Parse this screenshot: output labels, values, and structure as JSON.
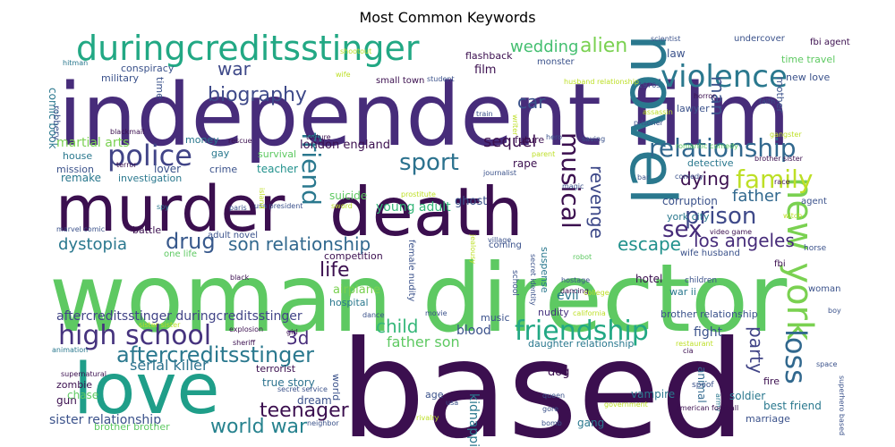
{
  "chart_data": {
    "type": "wordcloud",
    "title": "Most Common Keywords",
    "words": [
      {
        "text": "based",
        "color": "#3b0f4f"
      },
      {
        "text": "woman director",
        "color": "#5ec962"
      },
      {
        "text": "independent film",
        "color": "#472c7a"
      },
      {
        "text": "death",
        "color": "#3b0f4f"
      },
      {
        "text": "murder",
        "color": "#3b0f4f"
      },
      {
        "text": "love",
        "color": "#1f9e89"
      },
      {
        "text": "novel",
        "color": "#2a788e"
      },
      {
        "text": "duringcreditsstinger",
        "color": "#22a884"
      },
      {
        "text": "violence",
        "color": "#2a788e"
      },
      {
        "text": "new york",
        "color": "#7ad151"
      },
      {
        "text": "relationship",
        "color": "#31688e"
      },
      {
        "text": "police",
        "color": "#414487"
      },
      {
        "text": "friendship",
        "color": "#22a884"
      },
      {
        "text": "prison",
        "color": "#3e4989"
      },
      {
        "text": "high school",
        "color": "#46337e"
      },
      {
        "text": "family",
        "color": "#bddf26"
      },
      {
        "text": "sport",
        "color": "#2c728e"
      },
      {
        "text": "musical",
        "color": "#3b0f4f"
      },
      {
        "text": "aftercreditsstinger",
        "color": "#2a788e"
      },
      {
        "text": "friend",
        "color": "#2a788e"
      },
      {
        "text": "loss",
        "color": "#31688e"
      },
      {
        "text": "sex",
        "color": "#472c7a"
      },
      {
        "text": "drug",
        "color": "#38598c"
      },
      {
        "text": "biography",
        "color": "#3e4989"
      },
      {
        "text": "teenager",
        "color": "#3b0f4f"
      },
      {
        "text": "world war",
        "color": "#26828e"
      },
      {
        "text": "los angeles",
        "color": "#472c7a"
      },
      {
        "text": "son relationship",
        "color": "#31688e"
      },
      {
        "text": "escape",
        "color": "#21918c"
      },
      {
        "text": "dystopia",
        "color": "#2a788e"
      },
      {
        "text": "sequel",
        "color": "#3b0f4f"
      },
      {
        "text": "dying",
        "color": "#3b0f4f"
      },
      {
        "text": "revenge",
        "color": "#3e4989"
      },
      {
        "text": "party",
        "color": "#414487"
      },
      {
        "text": "3d",
        "color": "#472c7a"
      },
      {
        "text": "life",
        "color": "#3b0f4f"
      },
      {
        "text": "child",
        "color": "#35b779"
      },
      {
        "text": "alien",
        "color": "#7ad151"
      },
      {
        "text": "wedding",
        "color": "#44bf70"
      },
      {
        "text": "war",
        "color": "#3e4989"
      },
      {
        "text": "car",
        "color": "#3b528b"
      },
      {
        "text": "man",
        "color": "#3b528b"
      },
      {
        "text": "father",
        "color": "#31688e"
      },
      {
        "text": "serial killer",
        "color": "#2c728e"
      },
      {
        "text": "sister relationship",
        "color": "#3b528b"
      },
      {
        "text": "aftercreditsstinger duringcreditsstinger",
        "color": "#414487"
      },
      {
        "text": "london england",
        "color": "#3b0f4f"
      },
      {
        "text": "father son",
        "color": "#5ec962"
      },
      {
        "text": "blood",
        "color": "#3b528b"
      },
      {
        "text": "true story",
        "color": "#2c728e"
      },
      {
        "text": "dream",
        "color": "#3b528b"
      },
      {
        "text": "martial arts",
        "color": "#7ad151"
      },
      {
        "text": "corruption",
        "color": "#3b528b"
      },
      {
        "text": "suicide",
        "color": "#5ec962"
      },
      {
        "text": "young adult",
        "color": "#35b779"
      },
      {
        "text": "ghost",
        "color": "#3b528b"
      },
      {
        "text": "fight",
        "color": "#3b528b"
      },
      {
        "text": "animal",
        "color": "#31688e"
      },
      {
        "text": "teacher",
        "color": "#21918c"
      },
      {
        "text": "survival",
        "color": "#5ec962"
      },
      {
        "text": "airplane",
        "color": "#7ad151"
      },
      {
        "text": "competition",
        "color": "#3b0f4f"
      },
      {
        "text": "hospital",
        "color": "#2a788e"
      },
      {
        "text": "music",
        "color": "#3b528b"
      },
      {
        "text": "nudity",
        "color": "#46337e"
      },
      {
        "text": "kidnapping",
        "color": "#2a788e"
      },
      {
        "text": "evil",
        "color": "#2a788e"
      },
      {
        "text": "dog",
        "color": "#3b0f4f"
      },
      {
        "text": "brother relationship",
        "color": "#3b528b"
      },
      {
        "text": "daughter relationship",
        "color": "#2a788e"
      },
      {
        "text": "hotel",
        "color": "#3b0f4f"
      },
      {
        "text": "war ii",
        "color": "#2a788e"
      },
      {
        "text": "vampire",
        "color": "#2a788e"
      },
      {
        "text": "soldier",
        "color": "#2a788e"
      },
      {
        "text": "best friend",
        "color": "#2a788e"
      },
      {
        "text": "marriage",
        "color": "#3b528b"
      },
      {
        "text": "gang",
        "color": "#2a788e"
      },
      {
        "text": "zombie",
        "color": "#3b0f4f"
      },
      {
        "text": "terrorist",
        "color": "#3b0f4f"
      },
      {
        "text": "rape",
        "color": "#3b0f4f"
      },
      {
        "text": "future",
        "color": "#3b0f4f"
      },
      {
        "text": "detective",
        "color": "#2a788e"
      },
      {
        "text": "york city",
        "color": "#2a788e"
      },
      {
        "text": "wife husband",
        "color": "#3b528b"
      },
      {
        "text": "lover",
        "color": "#3b528b"
      },
      {
        "text": "crime",
        "color": "#3b528b"
      },
      {
        "text": "remake",
        "color": "#2a788e"
      },
      {
        "text": "investigation",
        "color": "#2a788e"
      },
      {
        "text": "mission",
        "color": "#3b528b"
      },
      {
        "text": "house",
        "color": "#2a788e"
      },
      {
        "text": "gay",
        "color": "#2a788e"
      },
      {
        "text": "money",
        "color": "#2a788e"
      },
      {
        "text": "battle",
        "color": "#3b0f4f"
      },
      {
        "text": "adult novel",
        "color": "#3b528b"
      },
      {
        "text": "one life",
        "color": "#5ec962"
      },
      {
        "text": "coming",
        "color": "#3b528b"
      },
      {
        "text": "suspense",
        "color": "#2a788e"
      },
      {
        "text": "gun",
        "color": "#3b0f4f"
      },
      {
        "text": "chase",
        "color": "#5ec962"
      },
      {
        "text": "age",
        "color": "#3b528b"
      },
      {
        "text": "fire",
        "color": "#3b0f4f"
      },
      {
        "text": "spoof",
        "color": "#3b528b"
      },
      {
        "text": "fbi",
        "color": "#3b0f4f"
      },
      {
        "text": "mother",
        "color": "#3b528b"
      },
      {
        "text": "lawyer",
        "color": "#3b528b"
      },
      {
        "text": "law",
        "color": "#3b528b"
      },
      {
        "text": "time travel",
        "color": "#5ec962"
      },
      {
        "text": "new love",
        "color": "#3b528b"
      },
      {
        "text": "agent",
        "color": "#3b528b"
      },
      {
        "text": "undercover",
        "color": "#3b528b"
      },
      {
        "text": "fbi agent",
        "color": "#3b0f4f"
      },
      {
        "text": "military",
        "color": "#3b528b"
      },
      {
        "text": "conspiracy",
        "color": "#3b528b"
      },
      {
        "text": "comic book",
        "color": "#2a788e"
      },
      {
        "text": "small town",
        "color": "#3b0f4f"
      },
      {
        "text": "film",
        "color": "#3b0f4f"
      },
      {
        "text": "flashback",
        "color": "#3b0f4f"
      },
      {
        "text": "monster",
        "color": "#3b528b"
      },
      {
        "text": "woman",
        "color": "#3b528b"
      },
      {
        "text": "children",
        "color": "#3b528b"
      },
      {
        "text": "horse",
        "color": "#3b528b"
      },
      {
        "text": "torture",
        "color": "#3b0f4f"
      },
      {
        "text": "rescue",
        "color": "#3b0f4f"
      },
      {
        "text": "blackmail",
        "color": "#3b0f4f"
      },
      {
        "text": "robbery",
        "color": "#3b528b"
      },
      {
        "text": "hitman",
        "color": "#2a788e"
      },
      {
        "text": "scientist",
        "color": "#3b528b"
      },
      {
        "text": "prisoner",
        "color": "#3b528b"
      },
      {
        "text": "faith",
        "color": "#3b528b"
      },
      {
        "text": "horror",
        "color": "#3b0f4f"
      },
      {
        "text": "brother sister",
        "color": "#3b0f4f"
      },
      {
        "text": "race",
        "color": "#3b0f4f"
      },
      {
        "text": "explosion",
        "color": "#3b0f4f"
      },
      {
        "text": "sheriff",
        "color": "#3b0f4f"
      },
      {
        "text": "animation",
        "color": "#2a788e"
      },
      {
        "text": "supernatural",
        "color": "#3b0f4f"
      },
      {
        "text": "girl",
        "color": "#3b0f4f"
      },
      {
        "text": "dance",
        "color": "#3b528b"
      },
      {
        "text": "movie",
        "color": "#3b528b"
      },
      {
        "text": "hostage",
        "color": "#3b528b"
      },
      {
        "text": "dancing",
        "color": "#3b0f4f"
      },
      {
        "text": "queen",
        "color": "#3b528b"
      },
      {
        "text": "gore",
        "color": "#3b528b"
      },
      {
        "text": "bomb",
        "color": "#3b528b"
      },
      {
        "text": "cia",
        "color": "#3b0f4f"
      },
      {
        "text": "space",
        "color": "#3b528b"
      },
      {
        "text": "boy",
        "color": "#3b528b"
      },
      {
        "text": "army",
        "color": "#2a788e"
      },
      {
        "text": "terror",
        "color": "#3b0f4f"
      },
      {
        "text": "spy",
        "color": "#2a788e"
      },
      {
        "text": "marvel comic",
        "color": "#3b528b"
      },
      {
        "text": "black",
        "color": "#3b0f4f"
      },
      {
        "text": "video game",
        "color": "#3b0f4f"
      },
      {
        "text": "village",
        "color": "#3b528b"
      },
      {
        "text": "robot",
        "color": "#5ec962"
      },
      {
        "text": "school",
        "color": "#3b528b"
      },
      {
        "text": "journalist",
        "color": "#3b528b"
      },
      {
        "text": "paris",
        "color": "#3b528b"
      },
      {
        "text": "hero",
        "color": "#3b528b"
      },
      {
        "text": "saving",
        "color": "#3b528b"
      },
      {
        "text": "train",
        "color": "#3b528b"
      },
      {
        "text": "student",
        "color": "#3b528b"
      },
      {
        "text": "writer",
        "color": "#bddf26"
      },
      {
        "text": "gangster",
        "color": "#bddf26"
      },
      {
        "text": "romantic comedy",
        "color": "#5ec962"
      },
      {
        "text": "secret service",
        "color": "#3b528b"
      },
      {
        "text": "rivalry",
        "color": "#bddf26"
      },
      {
        "text": "usa",
        "color": "#3b528b"
      },
      {
        "text": "government",
        "color": "#bddf26"
      },
      {
        "text": "american football",
        "color": "#3b0f4f"
      },
      {
        "text": "superhero based",
        "color": "#3b528b"
      },
      {
        "text": "neighbor",
        "color": "#3b528b"
      },
      {
        "text": "brother brother",
        "color": "#5ec962"
      },
      {
        "text": "female nudity",
        "color": "#3b528b"
      },
      {
        "text": "prostitute",
        "color": "#bddf26"
      },
      {
        "text": "sword",
        "color": "#bddf26"
      },
      {
        "text": "usa president",
        "color": "#3b528b"
      },
      {
        "text": "witch",
        "color": "#bddf26"
      },
      {
        "text": "wife",
        "color": "#bddf26"
      },
      {
        "text": "husband relationship",
        "color": "#bddf26"
      },
      {
        "text": "restaurant",
        "color": "#bddf26"
      },
      {
        "text": "college",
        "color": "#bddf26"
      },
      {
        "text": "california",
        "color": "#bddf26"
      },
      {
        "text": "sister sister",
        "color": "#bddf26"
      },
      {
        "text": "bar",
        "color": "#3b528b"
      },
      {
        "text": "magic",
        "color": "#3b528b"
      },
      {
        "text": "parent",
        "color": "#bddf26"
      },
      {
        "text": "island",
        "color": "#bddf26"
      },
      {
        "text": "secret identity",
        "color": "#3b528b"
      },
      {
        "text": "jealousy",
        "color": "#bddf26"
      },
      {
        "text": "1970s",
        "color": "#3b528b"
      },
      {
        "text": "assassin",
        "color": "#bddf26"
      },
      {
        "text": "comedy",
        "color": "#3b528b"
      },
      {
        "text": "shootout",
        "color": "#bddf26"
      },
      {
        "text": "time",
        "color": "#3b528b"
      },
      {
        "text": "world",
        "color": "#3b528b"
      }
    ]
  }
}
